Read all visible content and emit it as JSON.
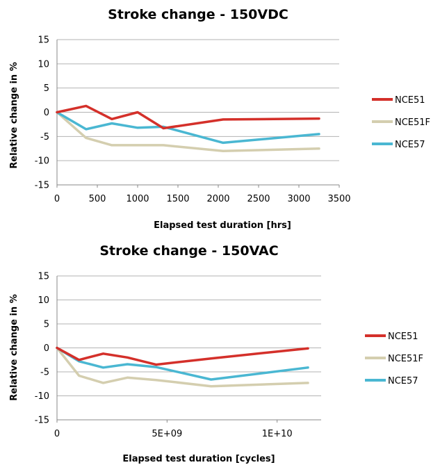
{
  "chart_data": [
    {
      "type": "line",
      "title": "Stroke change - 150VDC",
      "xlabel": "Elapsed test duration [hrs]",
      "ylabel": "Relative change in %",
      "xlim": [
        0,
        3500
      ],
      "ylim": [
        -15,
        15
      ],
      "x_ticks": [
        "0",
        "500",
        "1000",
        "1500",
        "2000",
        "2500",
        "3000",
        "3500"
      ],
      "y_ticks": [
        "15",
        "10",
        "5",
        "0",
        "-5",
        "-10",
        "-15"
      ],
      "grid": true,
      "legend_position": "right",
      "series": [
        {
          "name": "NCE51",
          "color": "#d4302a",
          "x": [
            0,
            360,
            680,
            1000,
            1320,
            2060,
            3250
          ],
          "y": [
            0,
            1.3,
            -1.4,
            0,
            -3.3,
            -1.5,
            -1.3
          ]
        },
        {
          "name": "NCE51F",
          "color": "#d4ceaf",
          "x": [
            0,
            360,
            680,
            1000,
            1320,
            2060,
            3250
          ],
          "y": [
            0,
            -5.3,
            -6.8,
            -6.8,
            -6.8,
            -8.0,
            -7.5
          ]
        },
        {
          "name": "NCE57",
          "color": "#4ab7d2",
          "x": [
            0,
            360,
            680,
            1000,
            1320,
            2060,
            3250
          ],
          "y": [
            0,
            -3.5,
            -2.3,
            -3.2,
            -3.0,
            -6.3,
            -4.5
          ]
        }
      ]
    },
    {
      "type": "line",
      "title": "Stroke change - 150VAC",
      "xlabel": "Elapsed test duration [cycles]",
      "ylabel": "Relative change in %",
      "xlim": [
        0,
        12000000000
      ],
      "ylim": [
        -15,
        15
      ],
      "x_tick_values": [
        0,
        5000000000,
        10000000000
      ],
      "x_ticks": [
        "0",
        "5E+09",
        "1E+10"
      ],
      "y_ticks": [
        "15",
        "10",
        "5",
        "0",
        "-5",
        "-10",
        "-15"
      ],
      "grid": true,
      "legend_position": "right",
      "series": [
        {
          "name": "NCE51",
          "color": "#d4302a",
          "x": [
            0,
            1000000000,
            2100000000,
            3200000000,
            4500000000,
            7000000000,
            11400000000
          ],
          "y": [
            0,
            -2.5,
            -1.2,
            -2.0,
            -3.5,
            -2.2,
            -0.1
          ]
        },
        {
          "name": "NCE51F",
          "color": "#d4ceaf",
          "x": [
            0,
            1000000000,
            2100000000,
            3200000000,
            4500000000,
            7000000000,
            11400000000
          ],
          "y": [
            0,
            -5.8,
            -7.3,
            -6.2,
            -6.7,
            -8.0,
            -7.3
          ]
        },
        {
          "name": "NCE57",
          "color": "#4ab7d2",
          "x": [
            0,
            1000000000,
            2100000000,
            3200000000,
            4500000000,
            7000000000,
            11400000000
          ],
          "y": [
            0,
            -2.8,
            -4.1,
            -3.4,
            -4.0,
            -6.6,
            -4.1
          ]
        }
      ]
    }
  ]
}
